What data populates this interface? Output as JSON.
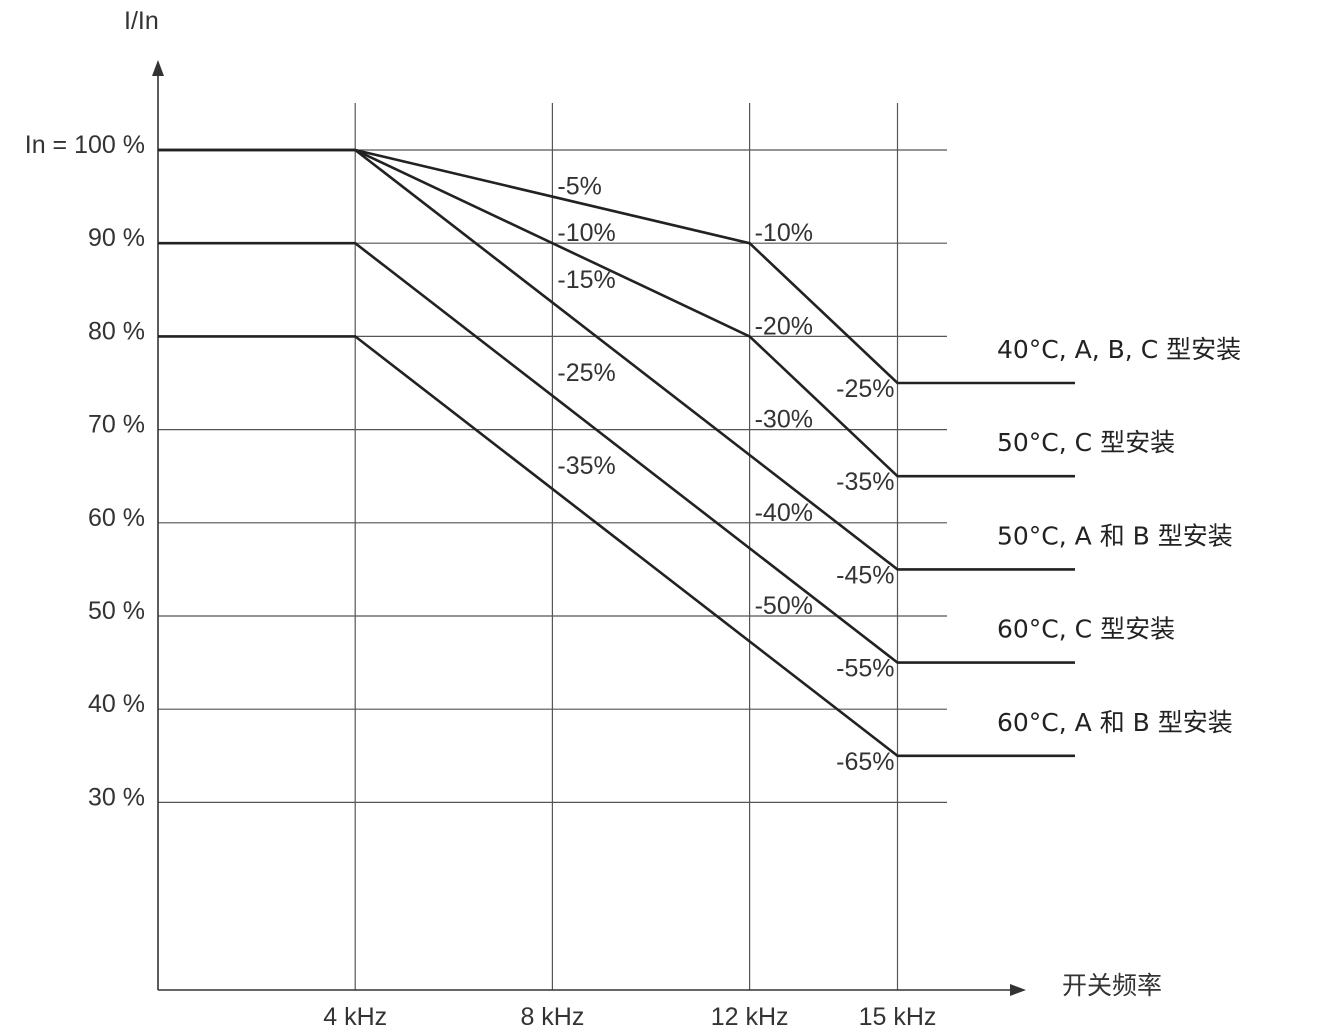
{
  "chart_data": {
    "type": "line",
    "title": "",
    "ylabel": "I/In",
    "xlabel": "开关频率",
    "x_ticks": [
      {
        "value": 4,
        "label": "4 kHz"
      },
      {
        "value": 8,
        "label": "8 kHz"
      },
      {
        "value": 12,
        "label": "12 kHz"
      },
      {
        "value": 15,
        "label": "15 kHz"
      }
    ],
    "y_ticks": [
      {
        "value": 100,
        "label": "In = 100 %"
      },
      {
        "value": 90,
        "label": "90 %"
      },
      {
        "value": 80,
        "label": "80 %"
      },
      {
        "value": 70,
        "label": "70 %"
      },
      {
        "value": 60,
        "label": "60 %"
      },
      {
        "value": 50,
        "label": "50 %"
      },
      {
        "value": 40,
        "label": "40 %"
      },
      {
        "value": 30,
        "label": "30 %"
      }
    ],
    "xlim": [
      0,
      18.6
    ],
    "ylim": [
      10,
      100
    ],
    "grid": true,
    "series": [
      {
        "name": "40°C, A, B, C 型安装",
        "x": [
          0,
          4,
          12,
          15,
          18.6
        ],
        "y": [
          100,
          100,
          90,
          75,
          75
        ]
      },
      {
        "name": "50°C, C 型安装",
        "x": [
          0,
          4,
          12,
          15,
          18.6
        ],
        "y": [
          100,
          100,
          80,
          65,
          65
        ]
      },
      {
        "name": "50°C, A 和 B 型安装",
        "x": [
          0,
          4,
          15,
          18.6
        ],
        "y": [
          100,
          100,
          55,
          55
        ]
      },
      {
        "name": "60°C, C 型安装",
        "x": [
          0,
          4,
          15,
          18.6
        ],
        "y": [
          90,
          90,
          45,
          45
        ]
      },
      {
        "name": "60°C, A 和 B 型安装",
        "x": [
          0,
          4,
          15,
          18.6
        ],
        "y": [
          80,
          80,
          35,
          35
        ]
      }
    ],
    "annotations": [
      {
        "text": "-5%",
        "x": 8,
        "y": 95
      },
      {
        "text": "-10%",
        "x": 8,
        "y": 90
      },
      {
        "text": "-15%",
        "x": 8,
        "y": 85
      },
      {
        "text": "-25%",
        "x": 8,
        "y": 75
      },
      {
        "text": "-35%",
        "x": 8,
        "y": 65
      },
      {
        "text": "-10%",
        "x": 12,
        "y": 90
      },
      {
        "text": "-20%",
        "x": 12,
        "y": 80
      },
      {
        "text": "-30%",
        "x": 12,
        "y": 70
      },
      {
        "text": "-40%",
        "x": 12,
        "y": 60
      },
      {
        "text": "-50%",
        "x": 12,
        "y": 50
      },
      {
        "text": "-25%",
        "x": 15,
        "y": 75
      },
      {
        "text": "-35%",
        "x": 15,
        "y": 65
      },
      {
        "text": "-45%",
        "x": 15,
        "y": 55
      },
      {
        "text": "-55%",
        "x": 15,
        "y": 45
      },
      {
        "text": "-65%",
        "x": 15,
        "y": 35
      }
    ]
  }
}
